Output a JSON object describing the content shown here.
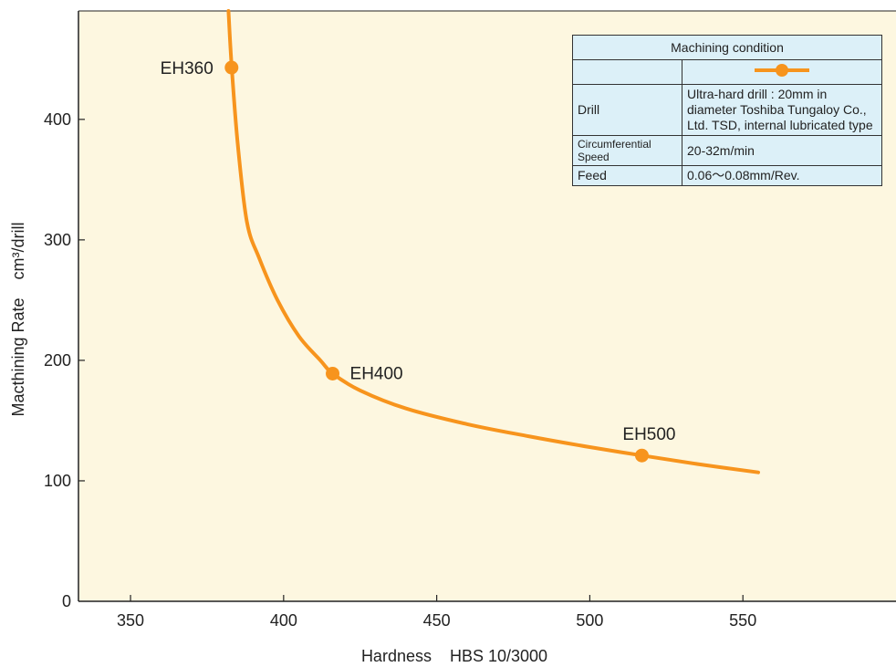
{
  "chart_data": {
    "type": "line",
    "title": "",
    "xlabel": "Hardness    HBS 10/3000",
    "ylabel": "Macthining Rate    cm³/drill",
    "xlim": [
      333,
      600
    ],
    "ylim": [
      0,
      490
    ],
    "xticks": [
      350,
      400,
      450,
      500,
      550
    ],
    "yticks": [
      0,
      100,
      200,
      300,
      400
    ],
    "grid": false,
    "background": "#fdf7e0",
    "series": [
      {
        "color": "#f7941d",
        "x": [
          382,
          383,
          385,
          388,
          392,
          398,
          405,
          412,
          416,
          425,
          440,
          460,
          480,
          500,
          517,
          535,
          555
        ],
        "y": [
          490,
          445,
          380,
          315,
          285,
          250,
          220,
          200,
          189,
          175,
          160,
          147,
          137,
          128,
          121,
          114,
          107
        ]
      }
    ],
    "points": [
      {
        "label": "EH360",
        "x": 383,
        "y": 443
      },
      {
        "label": "EH400",
        "x": 416,
        "y": 189
      },
      {
        "label": "EH500",
        "x": 517,
        "y": 121
      }
    ]
  },
  "legend_table": {
    "header": "Machining condition",
    "rows": [
      {
        "label": "Drill",
        "value": "Ultra-hard drill : 20mm in diameter Toshiba Tungaloy Co., Ltd. TSD, internal lubricated type"
      },
      {
        "label": "Circumferential Speed",
        "value": "20-32m/min"
      },
      {
        "label": "Feed",
        "value": "0.06～0.08mm/Rev."
      }
    ]
  }
}
